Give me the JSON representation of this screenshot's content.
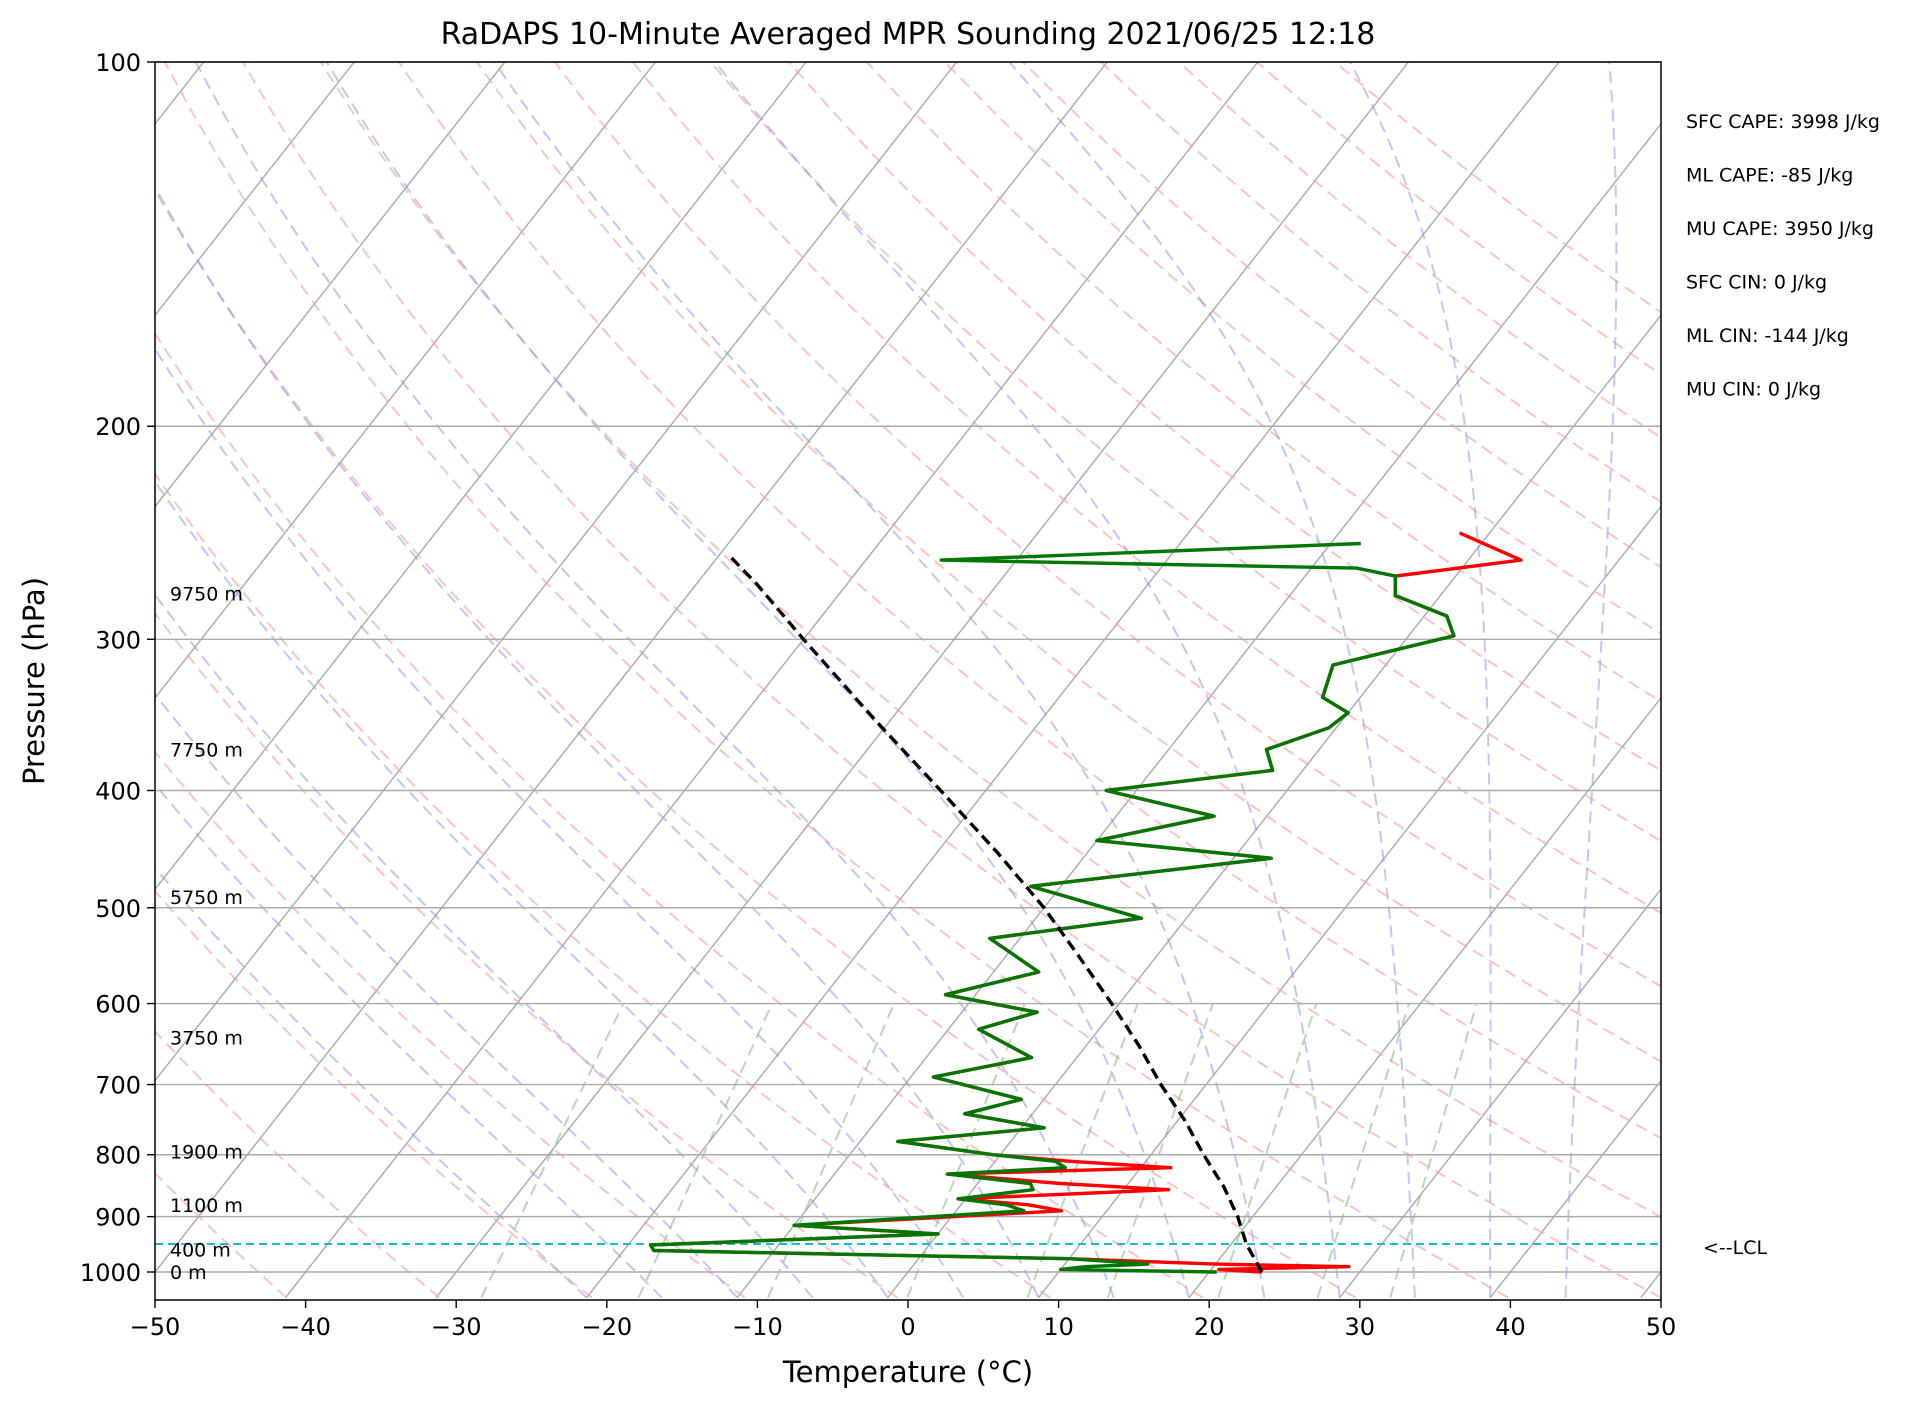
{
  "chart_data": {
    "type": "skew-t sounding",
    "title": "RaDAPS 10-Minute Averaged MPR Sounding 2021/06/25 12:18",
    "xlabel": "Temperature (°C)",
    "ylabel": "Pressure (hPa)",
    "xlim": [
      -50,
      50
    ],
    "ylim": [
      1050,
      100
    ],
    "y_scale": "log",
    "x_ticks": [
      "−50",
      "−40",
      "−30",
      "−20",
      "−10",
      "0",
      "10",
      "20",
      "30",
      "40",
      "50"
    ],
    "y_ticks": [
      "100",
      "200",
      "300",
      "400",
      "500",
      "600",
      "700",
      "800",
      "900",
      "1000"
    ],
    "grid": true,
    "altitude_labels": [
      {
        "text": "9750 m",
        "pressure": 275
      },
      {
        "text": "7750 m",
        "pressure": 370
      },
      {
        "text": "5750 m",
        "pressure": 490
      },
      {
        "text": "3750 m",
        "pressure": 640
      },
      {
        "text": "1900 m",
        "pressure": 795
      },
      {
        "text": "1100 m",
        "pressure": 880
      },
      {
        "text": "400 m",
        "pressure": 958
      },
      {
        "text": "0 m",
        "pressure": 1000
      }
    ],
    "stats": [
      "SFC CAPE: 3998 J/kg",
      "ML CAPE: -85 J/kg",
      "MU CAPE: 3950 J/kg",
      "SFC CIN: 0 J/kg",
      "ML CIN: -144 J/kg",
      "MU CIN: 0 J/kg"
    ],
    "lcl": {
      "label": "<--LCL",
      "pressure": 948
    },
    "series": [
      {
        "color": "#ff0000",
        "points": [
          [
            1000,
            23.5
          ],
          [
            995,
            20.5
          ],
          [
            990,
            29.0
          ],
          [
            985,
            20.0
          ],
          [
            975,
            10.0
          ],
          [
            960,
            -18.0
          ],
          [
            950,
            -18.5
          ],
          [
            930,
            0.0
          ],
          [
            915,
            -10.0
          ],
          [
            890,
            7.0
          ],
          [
            880,
            4.5
          ],
          [
            870,
            -0.5
          ],
          [
            855,
            13.0
          ],
          [
            845,
            5.5
          ],
          [
            830,
            -2.5
          ],
          [
            820,
            12.0
          ],
          [
            810,
            5.0
          ],
          [
            800,
            -0.5
          ],
          [
            780,
            -7.5
          ],
          [
            760,
            1.5
          ],
          [
            740,
            -4.5
          ],
          [
            720,
            -1.5
          ],
          [
            690,
            -8.5
          ],
          [
            665,
            -3.0
          ],
          [
            630,
            -8.0
          ],
          [
            610,
            -5.0
          ],
          [
            590,
            -12.0
          ],
          [
            565,
            -7.0
          ],
          [
            530,
            -12.0
          ],
          [
            510,
            -3.0
          ],
          [
            480,
            -12.0
          ],
          [
            455,
            2.5
          ],
          [
            440,
            -10.0
          ],
          [
            420,
            -3.5
          ],
          [
            400,
            -12.0
          ],
          [
            385,
            -2.0
          ],
          [
            370,
            -3.5
          ],
          [
            355,
            -0.5
          ],
          [
            345,
            0.0
          ],
          [
            335,
            -2.5
          ],
          [
            315,
            -3.5
          ],
          [
            298,
            3.0
          ],
          [
            287,
            1.5
          ],
          [
            276,
            -3.0
          ],
          [
            266,
            -4.0
          ],
          [
            258,
            3.5
          ],
          [
            245,
            -2.0
          ]
        ]
      },
      {
        "color": "#007700",
        "points": [
          [
            1000,
            20.5
          ],
          [
            995,
            10.0
          ],
          [
            990,
            11.5
          ],
          [
            985,
            15.5
          ],
          [
            975,
            10.0
          ],
          [
            960,
            -18.0
          ],
          [
            950,
            -18.5
          ],
          [
            930,
            0.0
          ],
          [
            915,
            -10.0
          ],
          [
            890,
            4.5
          ],
          [
            880,
            3.0
          ],
          [
            870,
            -0.5
          ],
          [
            855,
            4.0
          ],
          [
            845,
            3.5
          ],
          [
            830,
            -2.5
          ],
          [
            820,
            5.0
          ],
          [
            810,
            4.0
          ],
          [
            800,
            -0.5
          ],
          [
            780,
            -7.5
          ],
          [
            760,
            1.5
          ],
          [
            740,
            -4.5
          ],
          [
            720,
            -1.5
          ],
          [
            690,
            -8.5
          ],
          [
            665,
            -3.0
          ],
          [
            630,
            -8.0
          ],
          [
            610,
            -5.0
          ],
          [
            590,
            -12.0
          ],
          [
            565,
            -7.0
          ],
          [
            530,
            -12.0
          ],
          [
            510,
            -3.0
          ],
          [
            480,
            -12.0
          ],
          [
            455,
            2.5
          ],
          [
            440,
            -10.0
          ],
          [
            420,
            -3.5
          ],
          [
            400,
            -12.0
          ],
          [
            385,
            -2.0
          ],
          [
            370,
            -3.5
          ],
          [
            355,
            -0.5
          ],
          [
            345,
            0.0
          ],
          [
            335,
            -2.5
          ],
          [
            315,
            -3.5
          ],
          [
            298,
            3.0
          ],
          [
            287,
            1.5
          ],
          [
            276,
            -3.0
          ],
          [
            266,
            -4.0
          ],
          [
            262,
            -7.0
          ],
          [
            258,
            -35.0
          ],
          [
            250,
            -8.0
          ]
        ]
      },
      {
        "color": "#000000",
        "dashed": true,
        "points": [
          [
            1000,
            23.5
          ],
          [
            948,
            21.0
          ],
          [
            900,
            19.0
          ],
          [
            850,
            16.5
          ],
          [
            800,
            13.5
          ],
          [
            750,
            10.5
          ],
          [
            700,
            7.0
          ],
          [
            650,
            3.5
          ],
          [
            600,
            -0.5
          ],
          [
            550,
            -5.0
          ],
          [
            500,
            -10.0
          ],
          [
            450,
            -16.0
          ],
          [
            400,
            -23.0
          ],
          [
            350,
            -31.0
          ],
          [
            300,
            -40.0
          ],
          [
            270,
            -46.0
          ],
          [
            255,
            -49.5
          ]
        ]
      }
    ]
  }
}
